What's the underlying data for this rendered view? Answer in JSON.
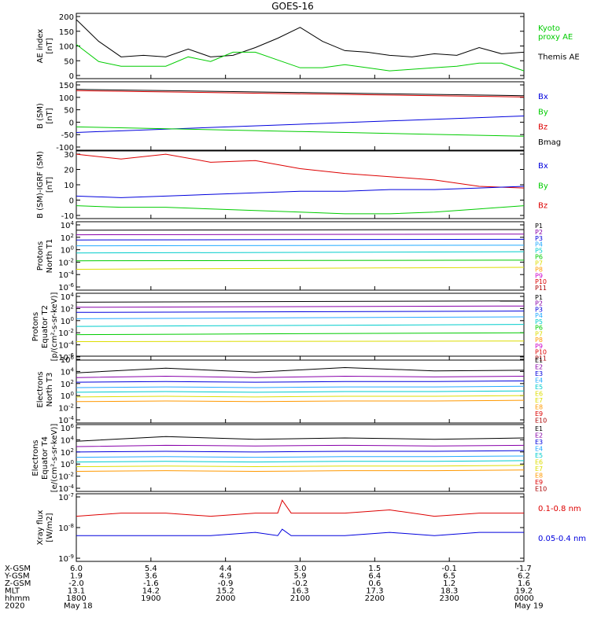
{
  "title": "GOES-16",
  "colors": {
    "black": "#000000",
    "red": "#dd0000",
    "green": "#00cc00",
    "blue": "#0000dd",
    "purple": "#8800aa",
    "cyan": "#00cccc",
    "sky": "#22aaff",
    "yellow": "#dddd00",
    "orange": "#ff9900",
    "magenta": "#cc00cc",
    "darkred": "#aa0000"
  },
  "chart_data": [
    {
      "type": "line",
      "id": "ae",
      "ylabel": "AE index\n[nT]",
      "yticks": [
        "200",
        "150",
        "100",
        "50",
        "0"
      ],
      "legend": [
        {
          "name": "Kyoto\nproxy AE",
          "color": "#00cc00"
        },
        {
          "name": "Themis AE",
          "color": "#000000"
        }
      ],
      "x": [
        0,
        5,
        10,
        15,
        20,
        25,
        30,
        35,
        40,
        45,
        50,
        55,
        60,
        65,
        70,
        75,
        80,
        85,
        90,
        95,
        100
      ],
      "series": [
        {
          "name": "Themis AE",
          "color": "#000000",
          "values": [
            190,
            120,
            70,
            75,
            70,
            95,
            70,
            75,
            100,
            130,
            165,
            120,
            90,
            85,
            75,
            70,
            80,
            75,
            100,
            80,
            85
          ]
        },
        {
          "name": "Kyoto proxy AE",
          "color": "#00cc00",
          "values": [
            110,
            55,
            40,
            40,
            40,
            70,
            55,
            85,
            85,
            60,
            35,
            35,
            45,
            35,
            25,
            30,
            35,
            40,
            50,
            50,
            25
          ]
        }
      ],
      "ylim": [
        0,
        210
      ]
    },
    {
      "type": "line",
      "id": "b",
      "ylabel": "B (SM)\n[nT]",
      "yticks": [
        "150",
        "100",
        "50",
        "0",
        "-50",
        "-100"
      ],
      "legend": [
        {
          "name": "Bx",
          "color": "#0000dd"
        },
        {
          "name": "By",
          "color": "#00cc00"
        },
        {
          "name": "Bz",
          "color": "#dd0000"
        },
        {
          "name": "Bmag",
          "color": "#000000"
        }
      ],
      "x": [
        0,
        100
      ],
      "series": [
        {
          "name": "Bmag",
          "color": "#000000",
          "values": [
            130,
            105
          ]
        },
        {
          "name": "Bz",
          "color": "#dd0000",
          "values": [
            125,
            100
          ]
        },
        {
          "name": "Bx",
          "color": "#0000dd",
          "values": [
            -40,
            25
          ]
        },
        {
          "name": "By",
          "color": "#00cc00",
          "values": [
            -18,
            -55
          ]
        }
      ],
      "ylim": [
        -110,
        160
      ]
    },
    {
      "type": "line",
      "id": "bd",
      "ylabel": "B (SM)-IGRF (SM)\n[nT]",
      "yticks": [
        "30",
        "20",
        "10",
        "0",
        "-10"
      ],
      "legend": [
        {
          "name": "Bx",
          "color": "#0000dd"
        },
        {
          "name": "By",
          "color": "#00cc00"
        },
        {
          "name": "Bz",
          "color": "#dd0000"
        }
      ],
      "x": [
        0,
        10,
        20,
        30,
        40,
        50,
        60,
        70,
        80,
        90,
        100
      ],
      "series": [
        {
          "name": "Bz",
          "color": "#dd0000",
          "values": [
            29,
            26,
            29,
            24,
            25,
            20,
            17,
            15,
            13,
            9,
            8
          ]
        },
        {
          "name": "Bx",
          "color": "#0000dd",
          "values": [
            3,
            2,
            3,
            4,
            5,
            6,
            6,
            7,
            7,
            8,
            9
          ]
        },
        {
          "name": "By",
          "color": "#00cc00",
          "values": [
            -3,
            -4,
            -4,
            -5,
            -6,
            -7,
            -8,
            -8,
            -7,
            -5,
            -3
          ]
        }
      ],
      "ylim": [
        -11,
        31
      ]
    },
    {
      "type": "line",
      "id": "pn",
      "ylabel": "Protons\nNorth T1",
      "yticks": [
        "10^4",
        "10^2",
        "10^0",
        "10^-2",
        "10^-4",
        "10^-6"
      ],
      "legend": [
        {
          "name": "P1",
          "color": "#000000"
        },
        {
          "name": "P2",
          "color": "#8800aa"
        },
        {
          "name": "P3",
          "color": "#0000dd"
        },
        {
          "name": "P4",
          "color": "#22aaff"
        },
        {
          "name": "P5",
          "color": "#00cccc"
        },
        {
          "name": "P6",
          "color": "#00cc00"
        },
        {
          "name": "P7",
          "color": "#dddd00"
        },
        {
          "name": "P8",
          "color": "#ff9900"
        },
        {
          "name": "P9",
          "color": "#cc00cc"
        },
        {
          "name": "P10",
          "color": "#dd0000"
        },
        {
          "name": "P11",
          "color": "#aa0000"
        }
      ],
      "x": [
        0,
        100
      ],
      "series": [
        {
          "name": "P1",
          "color": "#000000",
          "values": [
            2.7,
            2.8
          ]
        },
        {
          "name": "P2",
          "color": "#8800aa",
          "values": [
            2.0,
            2.1
          ]
        },
        {
          "name": "P3",
          "color": "#0000dd",
          "values": [
            1.2,
            1.3
          ]
        },
        {
          "name": "P4",
          "color": "#22aaff",
          "values": [
            0.3,
            0.4
          ]
        },
        {
          "name": "P5",
          "color": "#00cccc",
          "values": [
            -0.8,
            -0.6
          ]
        },
        {
          "name": "P6",
          "color": "#00cc00",
          "values": [
            -2.0,
            -1.9
          ]
        },
        {
          "name": "P7",
          "color": "#dddd00",
          "values": [
            -3.3,
            -3.0
          ]
        }
      ],
      "ylim": [
        -6.5,
        4
      ]
    },
    {
      "type": "line",
      "id": "pe",
      "ylabel": "Protons\nEquator T2\n[p/(cm²-s-sr-keV)]",
      "yticks": [
        "10^4",
        "10^2",
        "10^0",
        "10^-2",
        "10^-4",
        "10^-6"
      ],
      "legend": [
        {
          "name": "P1",
          "color": "#000000"
        },
        {
          "name": "P2",
          "color": "#8800aa"
        },
        {
          "name": "P3",
          "color": "#0000dd"
        },
        {
          "name": "P4",
          "color": "#22aaff"
        },
        {
          "name": "P5",
          "color": "#00cccc"
        },
        {
          "name": "P6",
          "color": "#00cc00"
        },
        {
          "name": "P7",
          "color": "#dddd00"
        },
        {
          "name": "P8",
          "color": "#ff9900"
        },
        {
          "name": "P9",
          "color": "#cc00cc"
        },
        {
          "name": "P10",
          "color": "#dd0000"
        },
        {
          "name": "P11",
          "color": "#aa0000"
        }
      ],
      "x": [
        0,
        100
      ],
      "series": [
        {
          "name": "P1",
          "color": "#000000",
          "values": [
            2.6,
            2.8
          ]
        },
        {
          "name": "P2",
          "color": "#8800aa",
          "values": [
            1.8,
            2.0
          ]
        },
        {
          "name": "P3",
          "color": "#0000dd",
          "values": [
            1.0,
            1.2
          ]
        },
        {
          "name": "P4",
          "color": "#22aaff",
          "values": [
            0.0,
            0.3
          ]
        },
        {
          "name": "P5",
          "color": "#00cccc",
          "values": [
            -1.2,
            -0.9
          ]
        },
        {
          "name": "P6",
          "color": "#00cc00",
          "values": [
            -2.5,
            -2.2
          ]
        },
        {
          "name": "P7",
          "color": "#dddd00",
          "values": [
            -3.6,
            -3.5
          ]
        }
      ],
      "ylim": [
        -6.5,
        4
      ]
    },
    {
      "type": "line",
      "id": "en",
      "ylabel": "Electrons\nNorth T3",
      "yticks": [
        "10^6",
        "10^4",
        "10^2",
        "10^0",
        "10^-2",
        "10^-4"
      ],
      "legend": [
        {
          "name": "E1",
          "color": "#000000"
        },
        {
          "name": "E2",
          "color": "#8800aa"
        },
        {
          "name": "E3",
          "color": "#0000dd"
        },
        {
          "name": "E4",
          "color": "#22aaff"
        },
        {
          "name": "E5",
          "color": "#00cccc"
        },
        {
          "name": "E6",
          "color": "#dddd00"
        },
        {
          "name": "E7",
          "color": "#dddd00"
        },
        {
          "name": "E8",
          "color": "#ff9900"
        },
        {
          "name": "E9",
          "color": "#dd0000"
        },
        {
          "name": "E10",
          "color": "#aa0000"
        }
      ],
      "x": [
        0,
        20,
        40,
        60,
        80,
        100
      ],
      "series": [
        {
          "name": "E1",
          "color": "#000000",
          "values": [
            3.5,
            4.2,
            3.6,
            4.3,
            3.8,
            3.9
          ]
        },
        {
          "name": "E2",
          "color": "#8800aa",
          "values": [
            2.8,
            3.0,
            2.8,
            3.0,
            2.9,
            3.0
          ]
        },
        {
          "name": "E3",
          "color": "#0000dd",
          "values": [
            2.1,
            2.2,
            2.1,
            2.2,
            2.2,
            2.3
          ]
        },
        {
          "name": "E4",
          "color": "#22aaff",
          "values": [
            1.3,
            1.4,
            1.3,
            1.4,
            1.4,
            1.5
          ]
        },
        {
          "name": "E5",
          "color": "#00cccc",
          "values": [
            0.6,
            0.7,
            0.6,
            0.7,
            0.7,
            0.8
          ]
        },
        {
          "name": "E6",
          "color": "#dddd00",
          "values": [
            -0.1,
            0.0,
            -0.1,
            0.0,
            0.0,
            0.1
          ]
        },
        {
          "name": "E8",
          "color": "#ff9900",
          "values": [
            -0.8,
            -0.7,
            -0.8,
            -0.7,
            -0.7,
            -0.6
          ]
        }
      ],
      "ylim": [
        -4,
        6
      ]
    },
    {
      "type": "line",
      "id": "ee",
      "ylabel": "Electrons\nEquator T4\n[e/(cm²-s-sr-keV)]",
      "yticks": [
        "10^6",
        "10^4",
        "10^2",
        "10^0",
        "10^-2",
        "10^-4"
      ],
      "legend": [
        {
          "name": "E1",
          "color": "#000000"
        },
        {
          "name": "E2",
          "color": "#8800aa"
        },
        {
          "name": "E3",
          "color": "#0000dd"
        },
        {
          "name": "E4",
          "color": "#22aaff"
        },
        {
          "name": "E5",
          "color": "#00cccc"
        },
        {
          "name": "E6",
          "color": "#dddd00"
        },
        {
          "name": "E7",
          "color": "#dddd00"
        },
        {
          "name": "E8",
          "color": "#ff9900"
        },
        {
          "name": "E9",
          "color": "#dd0000"
        },
        {
          "name": "E10",
          "color": "#aa0000"
        }
      ],
      "x": [
        0,
        20,
        40,
        60,
        80,
        100
      ],
      "series": [
        {
          "name": "E1",
          "color": "#000000",
          "values": [
            3.5,
            4.2,
            3.8,
            4.0,
            3.8,
            4.0
          ]
        },
        {
          "name": "E2",
          "color": "#8800aa",
          "values": [
            2.7,
            2.9,
            2.8,
            2.9,
            2.8,
            2.9
          ]
        },
        {
          "name": "E3",
          "color": "#0000dd",
          "values": [
            1.9,
            2.0,
            1.9,
            2.0,
            2.0,
            2.1
          ]
        },
        {
          "name": "E4",
          "color": "#22aaff",
          "values": [
            1.1,
            1.2,
            1.1,
            1.2,
            1.2,
            1.3
          ]
        },
        {
          "name": "E5",
          "color": "#00cccc",
          "values": [
            0.4,
            0.5,
            0.4,
            0.5,
            0.5,
            0.6
          ]
        },
        {
          "name": "E6",
          "color": "#dddd00",
          "values": [
            -0.3,
            -0.2,
            -0.3,
            -0.2,
            -0.2,
            -0.1
          ]
        },
        {
          "name": "E8",
          "color": "#ff9900",
          "values": [
            -1.0,
            -0.9,
            -1.0,
            -0.9,
            -0.9,
            -0.8
          ]
        }
      ],
      "ylim": [
        -4,
        6
      ]
    },
    {
      "type": "line",
      "id": "xr",
      "ylabel": "Xray flux\n[W/m2]",
      "yticks": [
        "10^-7",
        "10^-8",
        "10^-9"
      ],
      "legend": [
        {
          "name": "0.1-0.8 nm",
          "color": "#dd0000"
        },
        {
          "name": "0.05-0.4 nm",
          "color": "#0000dd"
        }
      ],
      "x": [
        0,
        10,
        20,
        30,
        40,
        45,
        46,
        48,
        50,
        60,
        70,
        80,
        90,
        100
      ],
      "series": [
        {
          "name": "0.1-0.8 nm",
          "color": "#dd0000",
          "values": [
            -7.7,
            -7.6,
            -7.6,
            -7.7,
            -7.6,
            -7.6,
            -7.2,
            -7.6,
            -7.6,
            -7.6,
            -7.5,
            -7.7,
            -7.6,
            -7.6
          ]
        },
        {
          "name": "0.05-0.4 nm",
          "color": "#0000dd",
          "values": [
            -8.3,
            -8.3,
            -8.3,
            -8.3,
            -8.2,
            -8.3,
            -8.1,
            -8.3,
            -8.3,
            -8.3,
            -8.2,
            -8.3,
            -8.2,
            -8.2
          ]
        }
      ],
      "ylim": [
        -9.1,
        -7
      ]
    }
  ],
  "footer": {
    "rows": [
      {
        "label": "X-GSM",
        "values": [
          "6.0",
          "5.4",
          "4.4",
          "3.0",
          "1.5",
          "-0.1",
          "-1.7"
        ]
      },
      {
        "label": "Y-GSM",
        "values": [
          "1.9",
          "3.6",
          "4.9",
          "5.9",
          "6.4",
          "6.5",
          "6.2"
        ]
      },
      {
        "label": "Z-GSM",
        "values": [
          "-2.0",
          "-1.6",
          "-0.9",
          "-0.2",
          "0.6",
          "1.2",
          "1.6"
        ]
      },
      {
        "label": "MLT",
        "values": [
          "13.1",
          "14.2",
          "15.2",
          "16.3",
          "17.3",
          "18.3",
          "19.2"
        ]
      },
      {
        "label": "hhmm",
        "values": [
          "1800",
          "1900",
          "2000",
          "2100",
          "2200",
          "2300",
          "0000"
        ]
      }
    ],
    "year": "2020",
    "start_date": "May 18",
    "end_date": "May 19"
  }
}
